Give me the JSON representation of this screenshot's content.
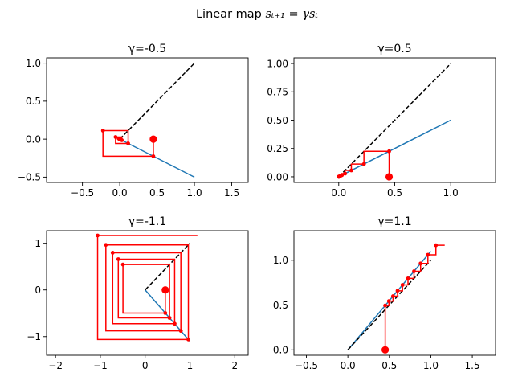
{
  "figure": {
    "title_prefix": "Linear map ",
    "title_math": "sₜ₊₁ = γsₜ"
  },
  "colors": {
    "line": "#1f77b4",
    "cobweb": "#ff0000",
    "identity": "#000000"
  },
  "chart_data": [
    {
      "type": "line",
      "title": "γ=-0.5",
      "gamma": -0.5,
      "s0": 0.45,
      "steps": 12,
      "map_line": {
        "x": [
          0,
          1
        ],
        "y": [
          0,
          -0.5
        ]
      },
      "identity_line": {
        "x": [
          0,
          1
        ],
        "y": [
          0,
          1
        ]
      },
      "xlim": [
        -0.98,
        1.72
      ],
      "ylim": [
        -0.57,
        1.07
      ],
      "xticks": [
        -0.5,
        0.0,
        0.5,
        1.0,
        1.5
      ],
      "xtick_labels": [
        "−0.5",
        "0.0",
        "0.5",
        "1.0",
        "1.5"
      ],
      "yticks": [
        -0.5,
        0.0,
        0.5,
        1.0
      ],
      "ytick_labels": [
        "−0.5",
        "0.0",
        "0.5",
        "1.0"
      ]
    },
    {
      "type": "line",
      "title": "γ=0.5",
      "gamma": 0.5,
      "s0": 0.45,
      "steps": 12,
      "map_line": {
        "x": [
          0,
          1
        ],
        "y": [
          0,
          0.5
        ]
      },
      "identity_line": {
        "x": [
          0,
          1
        ],
        "y": [
          0,
          1
        ]
      },
      "xlim": [
        -0.4,
        1.4
      ],
      "ylim": [
        -0.05,
        1.05
      ],
      "xticks": [
        0.0,
        0.5,
        1.0
      ],
      "xtick_labels": [
        "0.0",
        "0.5",
        "1.0"
      ],
      "yticks": [
        0.0,
        0.25,
        0.5,
        0.75,
        1.0
      ],
      "ytick_labels": [
        "0.00",
        "0.25",
        "0.50",
        "0.75",
        "1.00"
      ]
    },
    {
      "type": "line",
      "title": "γ=-1.1",
      "gamma": -1.1,
      "s0": 0.45,
      "steps": 10,
      "map_line": {
        "x": [
          0,
          1
        ],
        "y": [
          0,
          -1.1
        ]
      },
      "identity_line": {
        "x": [
          0,
          1
        ],
        "y": [
          0,
          1
        ]
      },
      "xlim": [
        -2.2,
        2.3
      ],
      "ylim": [
        -1.4,
        1.27
      ],
      "xticks": [
        -2,
        -1,
        0,
        1,
        2
      ],
      "xtick_labels": [
        "−2",
        "−1",
        "0",
        "1",
        "2"
      ],
      "yticks": [
        -1,
        0,
        1
      ],
      "ytick_labels": [
        "−1",
        "0",
        "1"
      ]
    },
    {
      "type": "line",
      "title": "γ=1.1",
      "gamma": 1.1,
      "s0": 0.45,
      "steps": 10,
      "map_line": {
        "x": [
          0,
          1
        ],
        "y": [
          0,
          1.1
        ]
      },
      "identity_line": {
        "x": [
          0,
          1
        ],
        "y": [
          0,
          1
        ]
      },
      "xlim": [
        -0.65,
        1.78
      ],
      "ylim": [
        -0.06,
        1.33
      ],
      "xticks": [
        -0.5,
        0.0,
        0.5,
        1.0,
        1.5
      ],
      "xtick_labels": [
        "−0.5",
        "0.0",
        "0.5",
        "1.0",
        "1.5"
      ],
      "yticks": [
        0.0,
        0.5,
        1.0
      ],
      "ytick_labels": [
        "0.0",
        "0.5",
        "1.0"
      ]
    }
  ]
}
